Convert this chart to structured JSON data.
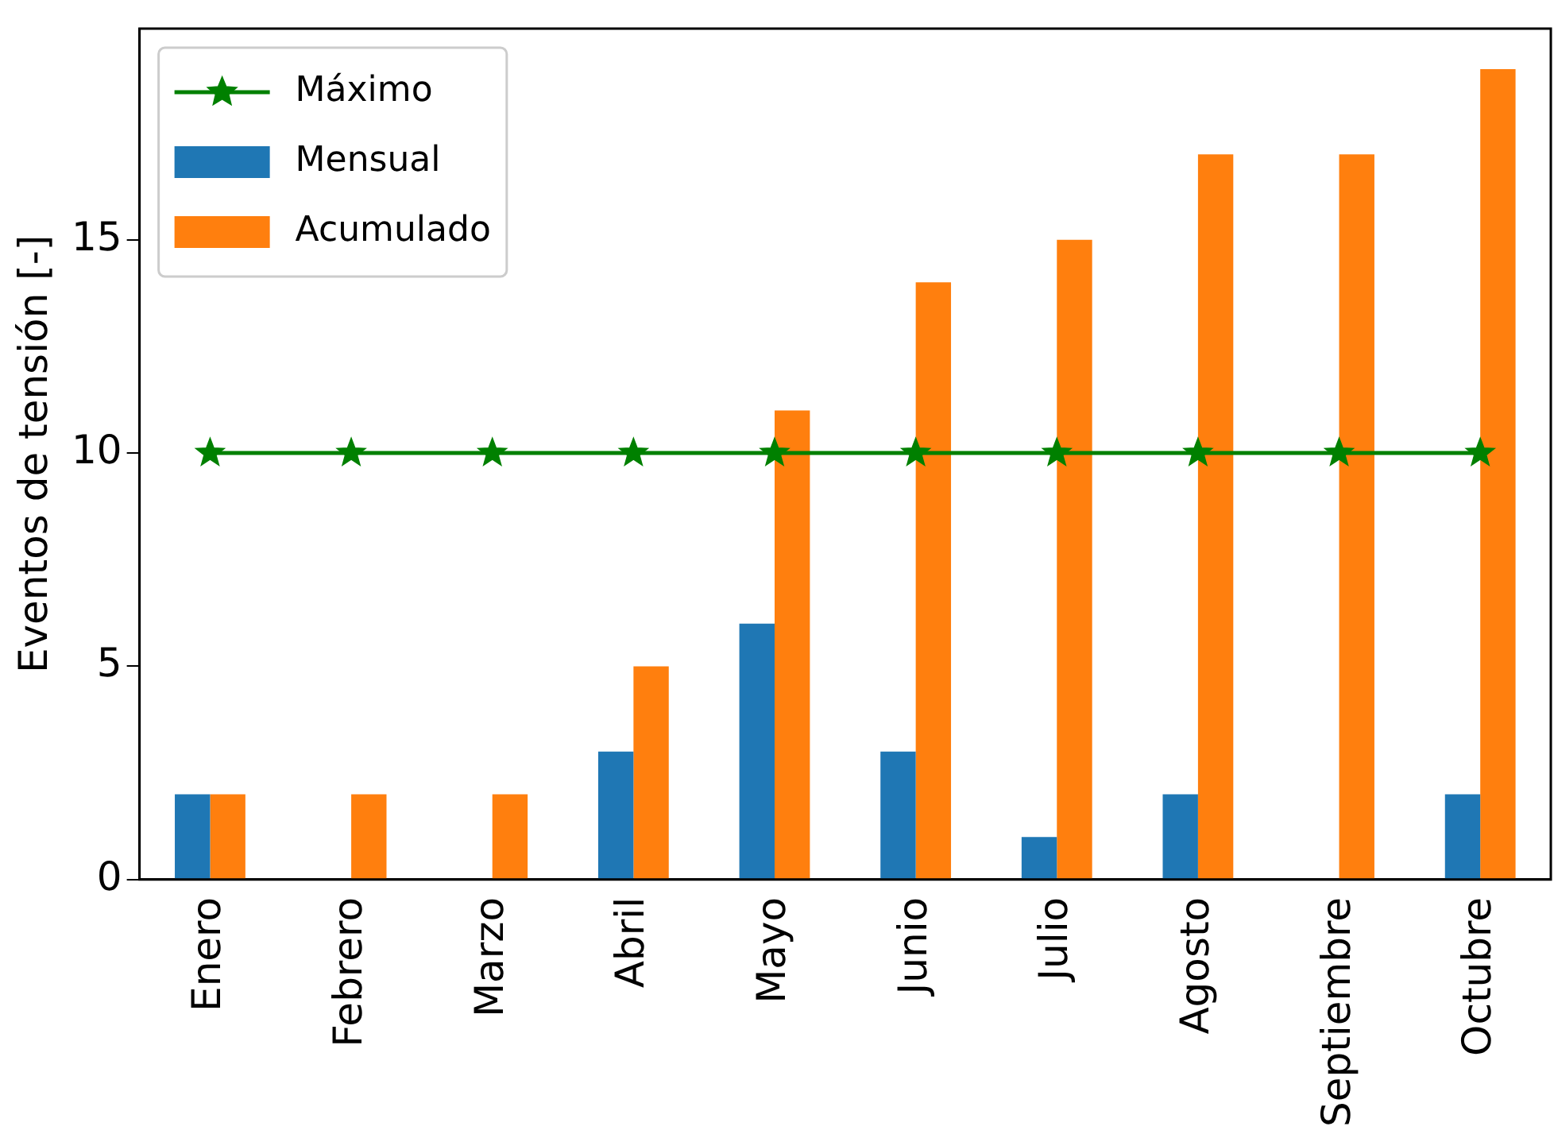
{
  "chart_data": {
    "type": "bar",
    "ylabel": "Eventos de tensión [-]",
    "categories": [
      "Enero",
      "Febrero",
      "Marzo",
      "Abril",
      "Mayo",
      "Junio",
      "Julio",
      "Agosto",
      "Septiembre",
      "Octubre"
    ],
    "series": [
      {
        "name": "Máximo",
        "type": "line",
        "color": "#008000",
        "marker": "star",
        "values": [
          10,
          10,
          10,
          10,
          10,
          10,
          10,
          10,
          10,
          10
        ]
      },
      {
        "name": "Mensual",
        "color": "#1f77b4",
        "values": [
          2,
          0,
          0,
          3,
          6,
          3,
          1,
          2,
          0,
          2
        ]
      },
      {
        "name": "Acumulado",
        "color": "#ff7f0e",
        "values": [
          2,
          2,
          2,
          5,
          11,
          14,
          15,
          17,
          17,
          19
        ]
      }
    ],
    "ylim": [
      0,
      19.95
    ],
    "yticks": [
      0,
      5,
      10,
      15
    ],
    "grid": false,
    "legend": "top left"
  }
}
